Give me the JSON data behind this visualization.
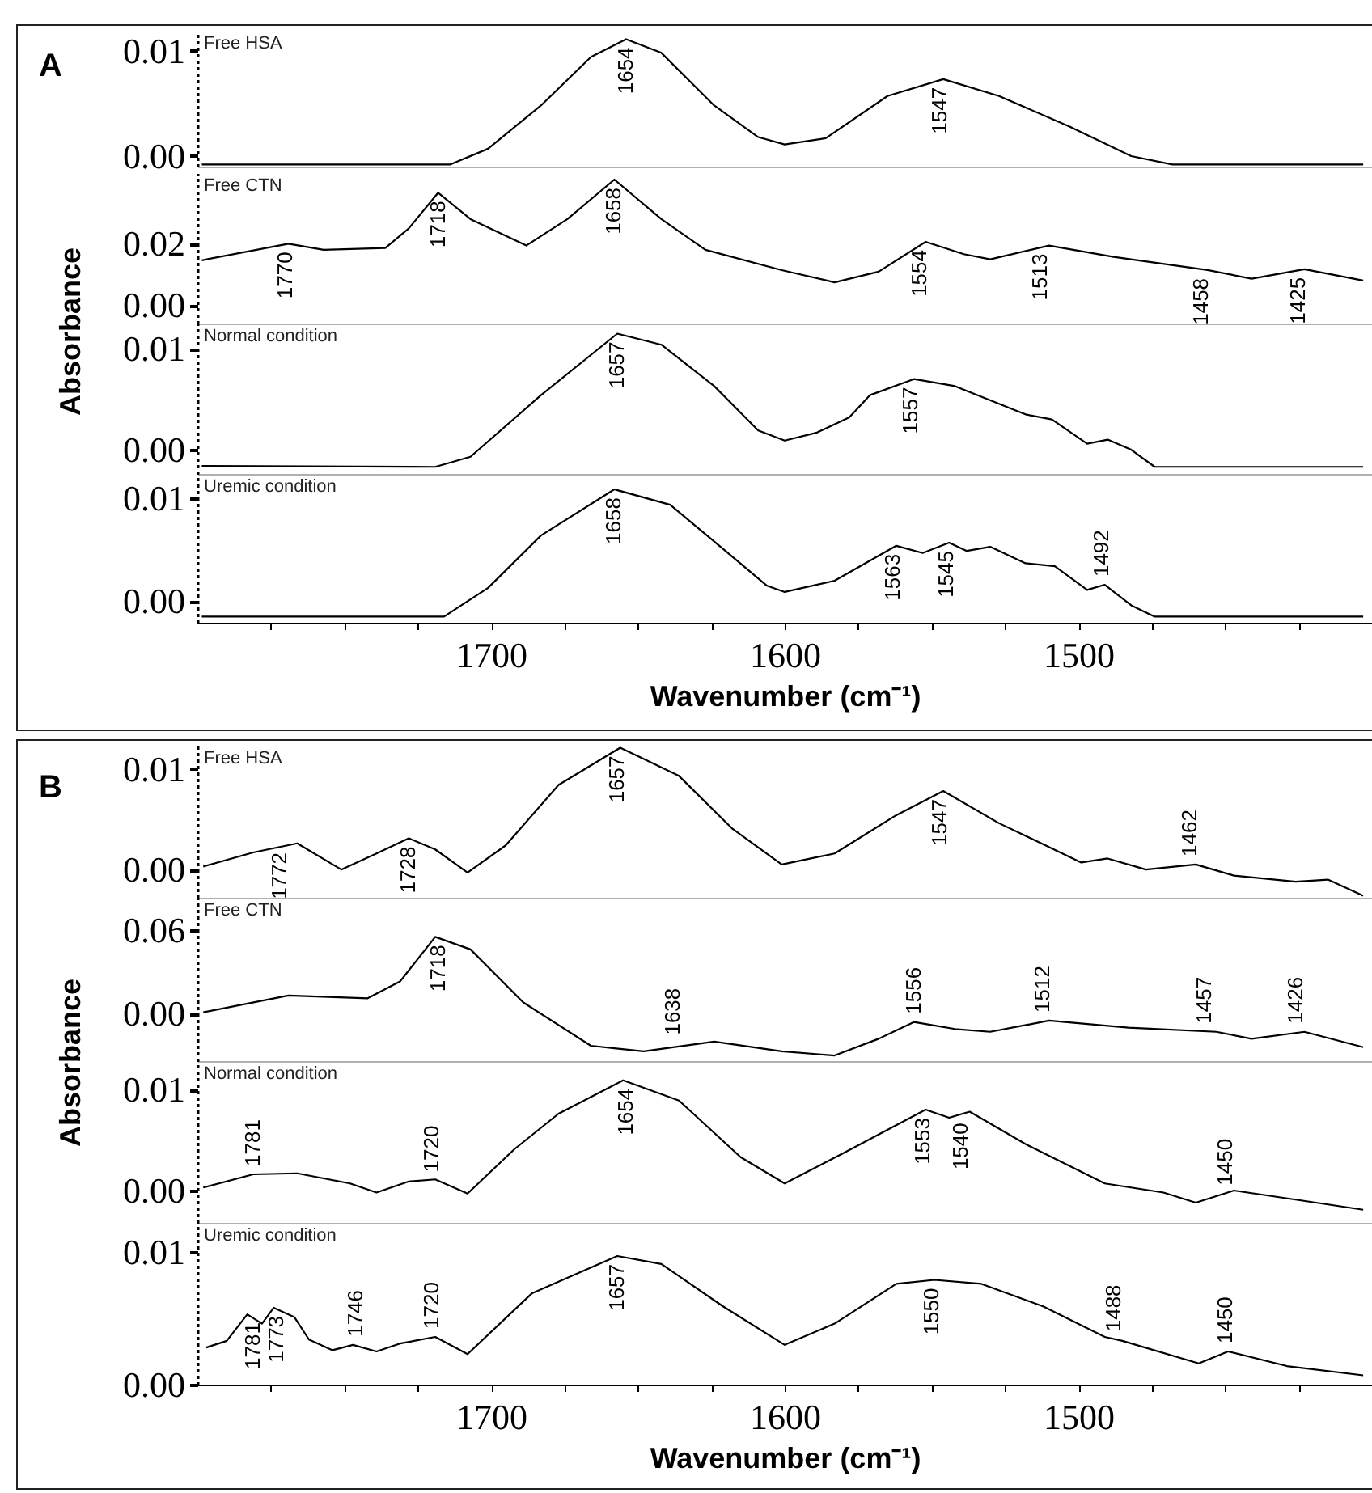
{
  "chart_data": [
    {
      "type": "line",
      "title": "Free HSA",
      "annotations": [
        "A",
        {
          "text": "1654",
          "x": 1654,
          "y": 0.0111
        },
        {
          "text": "1547",
          "x": 1547,
          "y": 0.0073
        }
      ],
      "x": [
        1798.5,
        1714,
        1701,
        1683,
        1666,
        1654,
        1642,
        1624,
        1609,
        1600,
        1586,
        1565,
        1546,
        1527,
        1503,
        1482,
        1468,
        1403
      ],
      "values": [
        -0.0008,
        -0.0008,
        0.0007,
        0.0048,
        0.0094,
        0.0111,
        0.0098,
        0.0048,
        0.0018,
        0.0011,
        0.0017,
        0.0057,
        0.0073,
        0.0057,
        0.0028,
        0.0,
        -0.0008,
        -0.0008
      ],
      "color": "#000000",
      "xlim": [
        1800,
        1400
      ],
      "ylim": [
        -0.001,
        0.0119
      ],
      "yticks": [
        {
          "value": 0,
          "label": "0.00"
        },
        {
          "value": 0.01,
          "label": "0.01"
        }
      ],
      "tick_labels": "y"
    },
    {
      "type": "line",
      "title": "Free CTN",
      "ylabel": "Absorbance",
      "annotations": [
        {
          "text": "1770",
          "x": 1770,
          "y": 0.02
        },
        {
          "text": "1718",
          "x": 1718,
          "y": 0.0366
        },
        {
          "text": "1658",
          "x": 1658,
          "y": 0.0409
        },
        {
          "text": "1554",
          "x": 1554,
          "y": 0.0206
        },
        {
          "text": "1513",
          "x": 1513,
          "y": 0.0194
        },
        {
          "text": "1458",
          "x": 1458,
          "y": 0.0114
        },
        {
          "text": "1425",
          "x": 1425,
          "y": 0.0117
        }
      ],
      "x": [
        1798.5,
        1769,
        1757,
        1736,
        1728,
        1718,
        1707,
        1688,
        1674,
        1658,
        1642,
        1627,
        1601,
        1583,
        1568,
        1552,
        1539,
        1530,
        1510,
        1488,
        1456,
        1441,
        1423,
        1403
      ],
      "values": [
        0.0146,
        0.02,
        0.018,
        0.0186,
        0.025,
        0.0366,
        0.028,
        0.0194,
        0.028,
        0.0409,
        0.028,
        0.018,
        0.0114,
        0.0074,
        0.0109,
        0.0206,
        0.0166,
        0.0149,
        0.0194,
        0.0157,
        0.0114,
        0.0086,
        0.0117,
        0.008
      ],
      "color": "#000000",
      "xlim": [
        1800,
        1400
      ],
      "ylim": [
        -0.006,
        0.043
      ],
      "yticks": [
        {
          "value": 0,
          "label": "0.00"
        },
        {
          "value": 0.02,
          "label": "0.02"
        }
      ],
      "tick_labels": "y"
    },
    {
      "type": "line",
      "title": "Normal condition",
      "annotations": [
        {
          "text": "1657",
          "x": 1657,
          "y": 0.0115
        },
        {
          "text": "1557",
          "x": 1557,
          "y": 0.007
        }
      ],
      "x": [
        1798.5,
        1719,
        1707,
        1683,
        1657,
        1642,
        1624,
        1609,
        1600,
        1589,
        1578,
        1571,
        1556,
        1542,
        1518,
        1509,
        1497,
        1490,
        1482,
        1474,
        1403
      ],
      "values": [
        -0.0016,
        -0.0017,
        -0.0007,
        0.0054,
        0.0115,
        0.0104,
        0.0063,
        0.0019,
        0.0009,
        0.0017,
        0.0032,
        0.0054,
        0.007,
        0.0063,
        0.0035,
        0.003,
        0.0006,
        0.001,
        0.0,
        -0.0017,
        -0.0017
      ],
      "color": "#000000",
      "xlim": [
        1800,
        1400
      ],
      "ylim": [
        -0.0024,
        0.0125
      ],
      "yticks": [
        {
          "value": 0,
          "label": "0.00"
        },
        {
          "value": 0.01,
          "label": "0.01"
        }
      ],
      "tick_labels": "y"
    },
    {
      "type": "line",
      "title": "Uremic condition",
      "xlabel": "Wavenumber (cm⁻¹)",
      "annotations": [
        {
          "text": "1658",
          "x": 1658,
          "y": 0.0109
        },
        {
          "text": "1563",
          "x": 1563,
          "y": 0.0054
        },
        {
          "text": "1545",
          "x": 1545,
          "y": 0.0057
        },
        {
          "text": "1492",
          "x": 1492,
          "y": 0.0016
        }
      ],
      "x": [
        1798.5,
        1716,
        1701,
        1683,
        1658,
        1639,
        1621,
        1606,
        1600,
        1583,
        1562,
        1553,
        1544,
        1538,
        1530,
        1518,
        1508,
        1497,
        1491,
        1482,
        1474,
        1403
      ],
      "values": [
        -0.0015,
        -0.0015,
        0.0013,
        0.0064,
        0.0109,
        0.0094,
        0.0051,
        0.0015,
        0.0009,
        0.002,
        0.0054,
        0.0047,
        0.0057,
        0.0049,
        0.0053,
        0.0037,
        0.0034,
        0.0011,
        0.0016,
        -0.0004,
        -0.0015,
        -0.0015
      ],
      "color": "#000000",
      "xlim": [
        1800,
        1400
      ],
      "ylim": [
        -0.0021,
        0.0124
      ],
      "yticks": [
        {
          "value": 0,
          "label": "0.00"
        },
        {
          "value": 0.01,
          "label": "0.01"
        }
      ],
      "xticks": [
        {
          "value": 1775,
          "label": null
        },
        {
          "value": 1750,
          "label": null
        },
        {
          "value": 1725,
          "label": null
        },
        1700,
        {
          "value": 1675,
          "label": null
        },
        {
          "value": 1650,
          "label": null
        },
        {
          "value": 1625,
          "label": null
        },
        1600,
        {
          "value": 1575,
          "label": null
        },
        {
          "value": 1550,
          "label": null
        },
        {
          "value": 1525,
          "label": null
        },
        1500,
        {
          "value": 1475,
          "label": null
        },
        {
          "value": 1450,
          "label": null
        },
        {
          "value": 1425,
          "label": null
        }
      ]
    },
    {
      "type": "line",
      "title": "Free HSA",
      "annotations": [
        "B",
        {
          "text": "1772",
          "x": 1772,
          "y": 0.0025
        },
        {
          "text": "1728",
          "x": 1728,
          "y": 0.0031
        },
        {
          "text": "1657",
          "x": 1657,
          "y": 0.0121
        },
        {
          "text": "1547",
          "x": 1547,
          "y": 0.0078
        },
        {
          "text": "1462",
          "x": 1462,
          "y": 0.0005
        }
      ],
      "x": [
        1798,
        1781,
        1766,
        1751,
        1739,
        1728,
        1719,
        1708,
        1695,
        1677,
        1656,
        1636,
        1618,
        1601,
        1583,
        1562,
        1546,
        1527,
        1499,
        1490,
        1477,
        1460,
        1447,
        1426,
        1415,
        1403
      ],
      "values": [
        0.0003,
        0.0017,
        0.0026,
        0.0,
        0.0016,
        0.0031,
        0.002,
        -0.0003,
        0.0024,
        0.0084,
        0.0121,
        0.0093,
        0.0041,
        0.0005,
        0.0016,
        0.0054,
        0.0078,
        0.0046,
        0.0007,
        0.0011,
        0.0,
        0.0005,
        -0.0006,
        -0.0012,
        -0.001,
        -0.0026
      ],
      "color": "#000000",
      "xlim": [
        1800,
        1400
      ],
      "ylim": [
        -0.0028,
        0.0123
      ],
      "yticks": [
        {
          "value": 0,
          "label": "0.00"
        },
        {
          "value": 0.01,
          "label": "0.01"
        }
      ],
      "tick_labels": "y"
    },
    {
      "type": "line",
      "title": "Free CTN",
      "ylabel": "Absorbance",
      "annotations": [
        {
          "text": "1718",
          "x": 1718,
          "y": 0.055
        },
        {
          "text": "1638",
          "x": 1638,
          "y": -0.021
        },
        {
          "text": "1556",
          "x": 1556,
          "y": -0.006
        },
        {
          "text": "1512",
          "x": 1512,
          "y": -0.005
        },
        {
          "text": "1457",
          "x": 1457,
          "y": -0.013
        },
        {
          "text": "1426",
          "x": 1426,
          "y": -0.013
        }
      ],
      "x": [
        1798,
        1769,
        1742,
        1731,
        1719,
        1707,
        1689,
        1666,
        1648,
        1624,
        1601,
        1583,
        1568,
        1556,
        1542,
        1530,
        1510,
        1483,
        1453,
        1441,
        1423,
        1403
      ],
      "values": [
        0.001,
        0.013,
        0.011,
        0.023,
        0.055,
        0.046,
        0.008,
        -0.023,
        -0.027,
        -0.02,
        -0.027,
        -0.03,
        -0.018,
        -0.006,
        -0.011,
        -0.013,
        -0.005,
        -0.01,
        -0.013,
        -0.018,
        -0.013,
        -0.024
      ],
      "color": "#000000",
      "xlim": [
        1800,
        1400
      ],
      "ylim": [
        -0.034,
        0.083
      ],
      "yticks": [
        {
          "value": 0,
          "label": "0.00"
        },
        {
          "value": 0.06,
          "label": "0.06"
        }
      ],
      "tick_labels": "y"
    },
    {
      "type": "line",
      "title": "Normal condition",
      "annotations": [
        {
          "text": "1781",
          "x": 1781,
          "y": 0.0016
        },
        {
          "text": "1720",
          "x": 1720,
          "y": 0.001
        },
        {
          "text": "1654",
          "x": 1654,
          "y": 0.0109
        },
        {
          "text": "1553",
          "x": 1553,
          "y": 0.008
        },
        {
          "text": "1540",
          "x": 1540,
          "y": 0.0075
        },
        {
          "text": "1450",
          "x": 1450,
          "y": -0.0003
        }
      ],
      "x": [
        1798,
        1781,
        1766,
        1748,
        1739,
        1728,
        1719,
        1708,
        1692,
        1677,
        1655,
        1636,
        1615,
        1600,
        1580,
        1552,
        1544,
        1537,
        1518,
        1491,
        1471,
        1460,
        1447,
        1426,
        1403
      ],
      "values": [
        0.0003,
        0.0016,
        0.0017,
        0.0007,
        -0.0002,
        0.0009,
        0.0011,
        -0.0003,
        0.0041,
        0.0076,
        0.0109,
        0.0089,
        0.0033,
        0.0007,
        0.0037,
        0.008,
        0.0072,
        0.0078,
        0.0046,
        0.0007,
        -0.0002,
        -0.0012,
        0.0,
        -0.0009,
        -0.0019
      ],
      "color": "#000000",
      "xlim": [
        1800,
        1400
      ],
      "ylim": [
        -0.0032,
        0.0128
      ],
      "yticks": [
        {
          "value": 0,
          "label": "0.00"
        },
        {
          "value": 0.01,
          "label": "0.01"
        }
      ],
      "tick_labels": "y"
    },
    {
      "type": "line",
      "title": "Uremic condition",
      "xlabel": "Wavenumber (cm⁻¹)",
      "annotations": [
        {
          "text": "1781",
          "x": 1781,
          "y": 0.0053
        },
        {
          "text": "1773",
          "x": 1773,
          "y": 0.0058
        },
        {
          "text": "1746",
          "x": 1746,
          "y": 0.003
        },
        {
          "text": "1720",
          "x": 1720,
          "y": 0.0036
        },
        {
          "text": "1657",
          "x": 1657,
          "y": 0.0097
        },
        {
          "text": "1550",
          "x": 1550,
          "y": 0.0079
        },
        {
          "text": "1488",
          "x": 1488,
          "y": 0.0034
        },
        {
          "text": "1450",
          "x": 1450,
          "y": 0.0025
        }
      ],
      "x": [
        1797,
        1790,
        1783,
        1778,
        1774,
        1767,
        1762,
        1754,
        1747,
        1739,
        1731,
        1719,
        1708,
        1686,
        1657,
        1642,
        1621,
        1600,
        1583,
        1562,
        1549,
        1533,
        1512,
        1491,
        1485,
        1459,
        1449,
        1429,
        1403
      ],
      "values": [
        0.0028,
        0.0033,
        0.0053,
        0.0046,
        0.0058,
        0.0051,
        0.0034,
        0.0026,
        0.003,
        0.0025,
        0.0031,
        0.0036,
        0.0023,
        0.0069,
        0.0097,
        0.0091,
        0.0059,
        0.003,
        0.0046,
        0.0076,
        0.0079,
        0.0076,
        0.0059,
        0.0036,
        0.0033,
        0.0016,
        0.0025,
        0.0014,
        0.0007
      ],
      "color": "#000000",
      "xlim": [
        1800,
        1400
      ],
      "ylim": [
        0,
        0.0122
      ],
      "yticks": [
        {
          "value": 0,
          "label": "0.00"
        },
        {
          "value": 0.01,
          "label": "0.01"
        }
      ],
      "xticks": [
        {
          "value": 1775,
          "label": null
        },
        {
          "value": 1750,
          "label": null
        },
        {
          "value": 1725,
          "label": null
        },
        1700,
        {
          "value": 1675,
          "label": null
        },
        {
          "value": 1650,
          "label": null
        },
        {
          "value": 1625,
          "label": null
        },
        1600,
        {
          "value": 1575,
          "label": null
        },
        {
          "value": 1550,
          "label": null
        },
        {
          "value": 1525,
          "label": null
        },
        1500,
        {
          "value": 1475,
          "label": null
        },
        {
          "value": 1450,
          "label": null
        },
        {
          "value": 1425,
          "label": null
        }
      ]
    }
  ]
}
